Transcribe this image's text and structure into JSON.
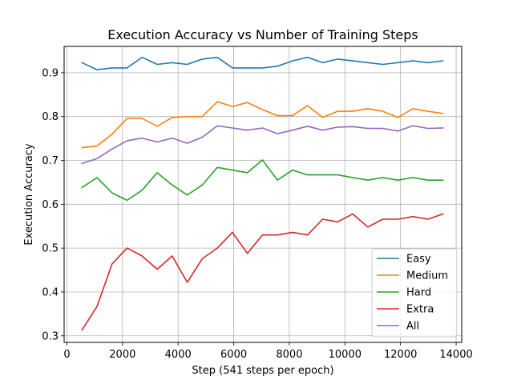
{
  "chart_data": {
    "type": "line",
    "title": "Execution Accuracy vs Number of Training Steps",
    "xlabel": "Step (541 steps per epoch)",
    "ylabel": "Execution Accuracy",
    "xlim": [
      -100,
      14200
    ],
    "ylim": [
      0.285,
      0.96
    ],
    "xticks": [
      0,
      2000,
      4000,
      6000,
      8000,
      10000,
      12000,
      14000
    ],
    "yticks": [
      0.3,
      0.4,
      0.5,
      0.6,
      0.7,
      0.8,
      0.9
    ],
    "grid": true,
    "legend_position": "lower-right",
    "x": [
      541,
      1082,
      1623,
      2164,
      2705,
      3246,
      3787,
      4328,
      4869,
      5410,
      5951,
      6492,
      7033,
      7574,
      8115,
      8656,
      9197,
      9738,
      10279,
      10820,
      11361,
      11902,
      12443,
      12984,
      13525
    ],
    "series": [
      {
        "name": "Easy",
        "color": "#1f77b4",
        "values": [
          0.923,
          0.907,
          0.911,
          0.911,
          0.935,
          0.919,
          0.923,
          0.919,
          0.931,
          0.935,
          0.911,
          0.911,
          0.911,
          0.915,
          0.927,
          0.935,
          0.923,
          0.931,
          0.927,
          0.923,
          0.919,
          0.923,
          0.927,
          0.923,
          0.927
        ]
      },
      {
        "name": "Medium",
        "color": "#ff7f0e",
        "values": [
          0.729,
          0.733,
          0.76,
          0.796,
          0.796,
          0.778,
          0.798,
          0.8,
          0.8,
          0.834,
          0.823,
          0.832,
          0.816,
          0.802,
          0.802,
          0.825,
          0.798,
          0.812,
          0.812,
          0.818,
          0.812,
          0.798,
          0.818,
          0.812,
          0.807
        ]
      },
      {
        "name": "Hard",
        "color": "#2ca02c",
        "values": [
          0.638,
          0.661,
          0.626,
          0.609,
          0.632,
          0.672,
          0.644,
          0.621,
          0.644,
          0.684,
          0.678,
          0.672,
          0.701,
          0.655,
          0.678,
          0.667,
          0.667,
          0.667,
          0.661,
          0.655,
          0.661,
          0.655,
          0.661,
          0.655,
          0.655
        ]
      },
      {
        "name": "Extra",
        "color": "#d62728",
        "values": [
          0.313,
          0.367,
          0.464,
          0.5,
          0.482,
          0.452,
          0.482,
          0.422,
          0.476,
          0.5,
          0.536,
          0.488,
          0.53,
          0.53,
          0.536,
          0.53,
          0.566,
          0.56,
          0.578,
          0.548,
          0.566,
          0.566,
          0.572,
          0.566,
          0.578
        ]
      },
      {
        "name": "All",
        "color": "#9467bd",
        "values": [
          0.693,
          0.704,
          0.726,
          0.745,
          0.751,
          0.742,
          0.751,
          0.739,
          0.753,
          0.779,
          0.774,
          0.769,
          0.774,
          0.761,
          0.769,
          0.778,
          0.769,
          0.776,
          0.777,
          0.773,
          0.773,
          0.767,
          0.779,
          0.773,
          0.774
        ]
      }
    ]
  }
}
